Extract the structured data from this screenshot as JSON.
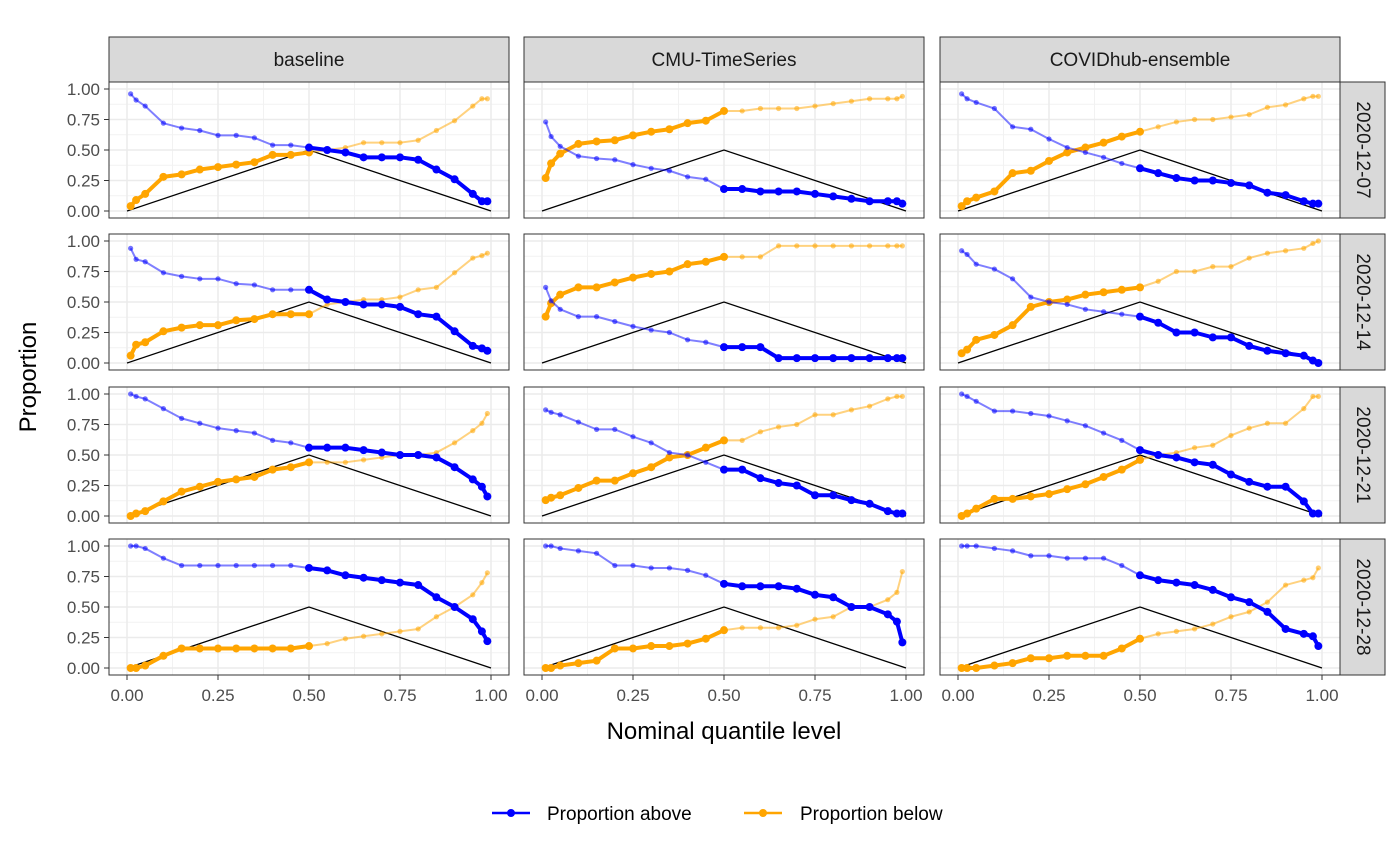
{
  "chart_data": {
    "type": "line",
    "facet_layout": "grid",
    "xlabel": "Nominal quantile level",
    "ylabel": "Proportion",
    "xlim": [
      0,
      1
    ],
    "ylim": [
      0,
      1
    ],
    "x_ticks": [
      "0.00",
      "0.25",
      "0.50",
      "0.75",
      "1.00"
    ],
    "y_ticks": [
      "0.00",
      "0.25",
      "0.50",
      "0.75",
      "1.00"
    ],
    "grid": true,
    "legend": {
      "position": "bottom",
      "entries": [
        "Proportion above",
        "Proportion below"
      ]
    },
    "colors": {
      "Proportion above": "#0000ff",
      "Proportion below": "#ffa500",
      "reference": "#000000"
    },
    "columns": [
      "baseline",
      "CMU-TimeSeries",
      "COVIDhub-ensemble"
    ],
    "rows": [
      "2020-12-07",
      "2020-12-14",
      "2020-12-21",
      "2020-12-28"
    ],
    "x": [
      0.01,
      0.025,
      0.05,
      0.1,
      0.15,
      0.2,
      0.25,
      0.3,
      0.35,
      0.4,
      0.45,
      0.5,
      0.55,
      0.6,
      0.65,
      0.7,
      0.75,
      0.8,
      0.85,
      0.9,
      0.95,
      0.975,
      0.99
    ],
    "reference_line": {
      "x": [
        0,
        0.5,
        1
      ],
      "y": [
        0,
        0.5,
        0
      ]
    },
    "panels": [
      {
        "column": "baseline",
        "row": "2020-12-07",
        "above": [
          0.96,
          0.91,
          0.86,
          0.72,
          0.68,
          0.66,
          0.62,
          0.62,
          0.6,
          0.54,
          0.54,
          0.52,
          0.5,
          0.48,
          0.44,
          0.44,
          0.44,
          0.42,
          0.34,
          0.26,
          0.14,
          0.08,
          0.08
        ],
        "below": [
          0.04,
          0.09,
          0.14,
          0.28,
          0.3,
          0.34,
          0.36,
          0.38,
          0.4,
          0.46,
          0.46,
          0.48,
          0.5,
          0.52,
          0.56,
          0.56,
          0.56,
          0.58,
          0.66,
          0.74,
          0.86,
          0.92,
          0.92
        ]
      },
      {
        "column": "CMU-TimeSeries",
        "row": "2020-12-07",
        "above": [
          0.73,
          0.61,
          0.53,
          0.45,
          0.43,
          0.42,
          0.38,
          0.35,
          0.33,
          0.28,
          0.26,
          0.18,
          0.18,
          0.16,
          0.16,
          0.16,
          0.14,
          0.12,
          0.1,
          0.08,
          0.08,
          0.08,
          0.06
        ],
        "below": [
          0.27,
          0.39,
          0.47,
          0.55,
          0.57,
          0.58,
          0.62,
          0.65,
          0.67,
          0.72,
          0.74,
          0.82,
          0.82,
          0.84,
          0.84,
          0.84,
          0.86,
          0.88,
          0.9,
          0.92,
          0.92,
          0.92,
          0.94
        ]
      },
      {
        "column": "COVIDhub-ensemble",
        "row": "2020-12-07",
        "above": [
          0.96,
          0.92,
          0.89,
          0.84,
          0.69,
          0.67,
          0.59,
          0.52,
          0.48,
          0.44,
          0.39,
          0.35,
          0.31,
          0.27,
          0.25,
          0.25,
          0.23,
          0.21,
          0.15,
          0.13,
          0.08,
          0.06,
          0.06
        ],
        "below": [
          0.04,
          0.08,
          0.11,
          0.16,
          0.31,
          0.33,
          0.41,
          0.48,
          0.52,
          0.56,
          0.61,
          0.65,
          0.69,
          0.73,
          0.75,
          0.75,
          0.77,
          0.79,
          0.85,
          0.87,
          0.92,
          0.94,
          0.94
        ]
      },
      {
        "column": "baseline",
        "row": "2020-12-14",
        "above": [
          0.94,
          0.85,
          0.83,
          0.74,
          0.71,
          0.69,
          0.69,
          0.65,
          0.64,
          0.6,
          0.6,
          0.6,
          0.52,
          0.5,
          0.48,
          0.48,
          0.46,
          0.4,
          0.38,
          0.26,
          0.14,
          0.12,
          0.1
        ],
        "below": [
          0.06,
          0.15,
          0.17,
          0.26,
          0.29,
          0.31,
          0.31,
          0.35,
          0.36,
          0.4,
          0.4,
          0.4,
          0.48,
          0.5,
          0.52,
          0.52,
          0.54,
          0.6,
          0.62,
          0.74,
          0.86,
          0.88,
          0.9
        ]
      },
      {
        "column": "CMU-TimeSeries",
        "row": "2020-12-14",
        "above": [
          0.62,
          0.51,
          0.44,
          0.38,
          0.38,
          0.34,
          0.3,
          0.27,
          0.25,
          0.19,
          0.17,
          0.13,
          0.13,
          0.13,
          0.04,
          0.04,
          0.04,
          0.04,
          0.04,
          0.04,
          0.04,
          0.04,
          0.04
        ],
        "below": [
          0.38,
          0.49,
          0.56,
          0.62,
          0.62,
          0.66,
          0.7,
          0.73,
          0.75,
          0.81,
          0.83,
          0.87,
          0.87,
          0.87,
          0.96,
          0.96,
          0.96,
          0.96,
          0.96,
          0.96,
          0.96,
          0.96,
          0.96
        ]
      },
      {
        "column": "COVIDhub-ensemble",
        "row": "2020-12-14",
        "above": [
          0.92,
          0.89,
          0.81,
          0.77,
          0.69,
          0.54,
          0.5,
          0.48,
          0.44,
          0.42,
          0.4,
          0.38,
          0.33,
          0.25,
          0.25,
          0.21,
          0.21,
          0.14,
          0.1,
          0.08,
          0.06,
          0.02,
          0.0
        ],
        "below": [
          0.08,
          0.11,
          0.19,
          0.23,
          0.31,
          0.46,
          0.5,
          0.52,
          0.56,
          0.58,
          0.6,
          0.62,
          0.67,
          0.75,
          0.75,
          0.79,
          0.79,
          0.86,
          0.9,
          0.92,
          0.94,
          0.98,
          1.0
        ]
      },
      {
        "column": "baseline",
        "row": "2020-12-21",
        "above": [
          1.0,
          0.98,
          0.96,
          0.88,
          0.8,
          0.76,
          0.72,
          0.7,
          0.68,
          0.62,
          0.6,
          0.56,
          0.56,
          0.56,
          0.54,
          0.52,
          0.5,
          0.5,
          0.48,
          0.4,
          0.3,
          0.24,
          0.16
        ],
        "below": [
          0.0,
          0.02,
          0.04,
          0.12,
          0.2,
          0.24,
          0.28,
          0.3,
          0.32,
          0.38,
          0.4,
          0.44,
          0.44,
          0.44,
          0.46,
          0.48,
          0.5,
          0.5,
          0.52,
          0.6,
          0.7,
          0.76,
          0.84
        ]
      },
      {
        "column": "CMU-TimeSeries",
        "row": "2020-12-21",
        "above": [
          0.87,
          0.85,
          0.83,
          0.77,
          0.71,
          0.71,
          0.65,
          0.6,
          0.52,
          0.5,
          0.44,
          0.38,
          0.38,
          0.31,
          0.27,
          0.25,
          0.17,
          0.17,
          0.13,
          0.1,
          0.04,
          0.02,
          0.02
        ],
        "below": [
          0.13,
          0.15,
          0.17,
          0.23,
          0.29,
          0.29,
          0.35,
          0.4,
          0.48,
          0.5,
          0.56,
          0.62,
          0.62,
          0.69,
          0.73,
          0.75,
          0.83,
          0.83,
          0.87,
          0.9,
          0.96,
          0.98,
          0.98
        ]
      },
      {
        "column": "COVIDhub-ensemble",
        "row": "2020-12-21",
        "above": [
          1.0,
          0.98,
          0.94,
          0.86,
          0.86,
          0.84,
          0.82,
          0.78,
          0.74,
          0.68,
          0.62,
          0.54,
          0.5,
          0.48,
          0.44,
          0.42,
          0.34,
          0.28,
          0.24,
          0.24,
          0.12,
          0.02,
          0.02
        ],
        "below": [
          0.0,
          0.02,
          0.06,
          0.14,
          0.14,
          0.16,
          0.18,
          0.22,
          0.26,
          0.32,
          0.38,
          0.46,
          0.5,
          0.52,
          0.56,
          0.58,
          0.66,
          0.72,
          0.76,
          0.76,
          0.88,
          0.98,
          0.98
        ]
      },
      {
        "column": "baseline",
        "row": "2020-12-28",
        "above": [
          1.0,
          1.0,
          0.98,
          0.9,
          0.84,
          0.84,
          0.84,
          0.84,
          0.84,
          0.84,
          0.84,
          0.82,
          0.8,
          0.76,
          0.74,
          0.72,
          0.7,
          0.68,
          0.58,
          0.5,
          0.4,
          0.3,
          0.22
        ],
        "below": [
          0.0,
          0.0,
          0.02,
          0.1,
          0.16,
          0.16,
          0.16,
          0.16,
          0.16,
          0.16,
          0.16,
          0.18,
          0.2,
          0.24,
          0.26,
          0.28,
          0.3,
          0.32,
          0.42,
          0.5,
          0.6,
          0.7,
          0.78
        ]
      },
      {
        "column": "CMU-TimeSeries",
        "row": "2020-12-28",
        "above": [
          1.0,
          1.0,
          0.98,
          0.96,
          0.94,
          0.84,
          0.84,
          0.82,
          0.82,
          0.8,
          0.76,
          0.69,
          0.67,
          0.67,
          0.67,
          0.65,
          0.6,
          0.58,
          0.5,
          0.5,
          0.44,
          0.38,
          0.21
        ],
        "below": [
          0.0,
          0.0,
          0.02,
          0.04,
          0.06,
          0.16,
          0.16,
          0.18,
          0.18,
          0.2,
          0.24,
          0.31,
          0.33,
          0.33,
          0.33,
          0.35,
          0.4,
          0.42,
          0.5,
          0.5,
          0.56,
          0.62,
          0.79
        ]
      },
      {
        "column": "COVIDhub-ensemble",
        "row": "2020-12-28",
        "above": [
          1.0,
          1.0,
          1.0,
          0.98,
          0.96,
          0.92,
          0.92,
          0.9,
          0.9,
          0.9,
          0.84,
          0.76,
          0.72,
          0.7,
          0.68,
          0.64,
          0.58,
          0.54,
          0.46,
          0.32,
          0.28,
          0.26,
          0.18
        ],
        "below": [
          0.0,
          0.0,
          0.0,
          0.02,
          0.04,
          0.08,
          0.08,
          0.1,
          0.1,
          0.1,
          0.16,
          0.24,
          0.28,
          0.3,
          0.32,
          0.36,
          0.42,
          0.46,
          0.54,
          0.68,
          0.72,
          0.74,
          0.82
        ]
      }
    ]
  }
}
